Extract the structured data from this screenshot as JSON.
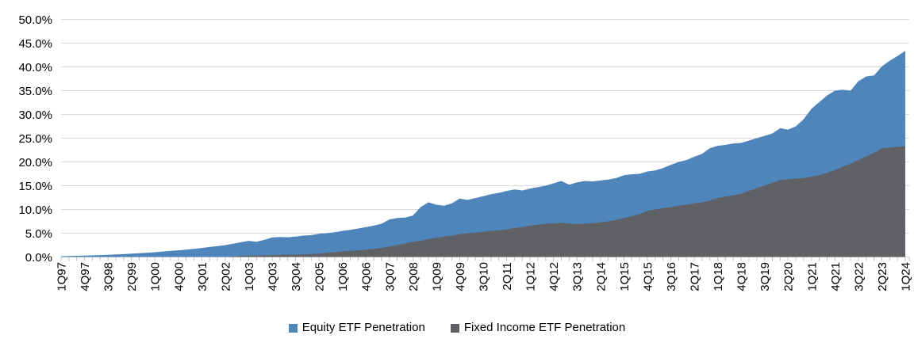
{
  "chart_data": {
    "type": "area",
    "title": "",
    "xlabel": "",
    "ylabel": "",
    "ylim": [
      0,
      50
    ],
    "ytick_step": 5,
    "grid": "horizontal",
    "legend_position": "bottom-center",
    "overlap_note": "series overlap (not stacked); Fixed Income drawn in front of Equity",
    "y_tick_labels": [
      "0.0%",
      "5.0%",
      "10.0%",
      "15.0%",
      "20.0%",
      "25.0%",
      "30.0%",
      "35.0%",
      "40.0%",
      "45.0%",
      "50.0%"
    ],
    "tick_labels": [
      "1Q97",
      "4Q97",
      "3Q98",
      "2Q99",
      "1Q00",
      "4Q00",
      "3Q01",
      "2Q02",
      "1Q03",
      "4Q03",
      "3Q04",
      "2Q05",
      "1Q06",
      "4Q06",
      "3Q07",
      "2Q08",
      "1Q09",
      "4Q09",
      "3Q10",
      "2Q11",
      "1Q12",
      "4Q12",
      "3Q13",
      "2Q14",
      "1Q15",
      "4Q15",
      "3Q16",
      "2Q17",
      "1Q18",
      "4Q18",
      "3Q19",
      "2Q20",
      "1Q21",
      "4Q21",
      "3Q22",
      "2Q23",
      "1Q24"
    ],
    "x": [
      "1Q97",
      "2Q97",
      "3Q97",
      "4Q97",
      "1Q98",
      "2Q98",
      "3Q98",
      "4Q98",
      "1Q99",
      "2Q99",
      "3Q99",
      "4Q99",
      "1Q00",
      "2Q00",
      "3Q00",
      "4Q00",
      "1Q01",
      "2Q01",
      "3Q01",
      "4Q01",
      "1Q02",
      "2Q02",
      "3Q02",
      "4Q02",
      "1Q03",
      "2Q03",
      "3Q03",
      "4Q03",
      "1Q04",
      "2Q04",
      "3Q04",
      "4Q04",
      "1Q05",
      "2Q05",
      "3Q05",
      "4Q05",
      "1Q06",
      "2Q06",
      "3Q06",
      "4Q06",
      "1Q07",
      "2Q07",
      "3Q07",
      "4Q07",
      "1Q08",
      "2Q08",
      "3Q08",
      "4Q08",
      "1Q09",
      "2Q09",
      "3Q09",
      "4Q09",
      "1Q10",
      "2Q10",
      "3Q10",
      "4Q10",
      "1Q11",
      "2Q11",
      "3Q11",
      "4Q11",
      "1Q12",
      "2Q12",
      "3Q12",
      "4Q12",
      "1Q13",
      "2Q13",
      "3Q13",
      "4Q13",
      "1Q14",
      "2Q14",
      "3Q14",
      "4Q14",
      "1Q15",
      "2Q15",
      "3Q15",
      "4Q15",
      "1Q16",
      "2Q16",
      "3Q16",
      "4Q16",
      "1Q17",
      "2Q17",
      "3Q17",
      "4Q17",
      "1Q18",
      "2Q18",
      "3Q18",
      "4Q18",
      "1Q19",
      "2Q19",
      "3Q19",
      "4Q19",
      "1Q20",
      "2Q20",
      "3Q20",
      "4Q20",
      "1Q21",
      "2Q21",
      "3Q21",
      "4Q21",
      "1Q22",
      "2Q22",
      "3Q22",
      "4Q22",
      "1Q23",
      "2Q23",
      "3Q23",
      "4Q23",
      "1Q24"
    ],
    "series": [
      {
        "name": "Equity ETF Penetration",
        "color": "#4E86BC",
        "values": [
          0.15,
          0.2,
          0.25,
          0.3,
          0.35,
          0.4,
          0.45,
          0.55,
          0.6,
          0.7,
          0.8,
          0.9,
          1.0,
          1.15,
          1.3,
          1.4,
          1.55,
          1.7,
          1.9,
          2.1,
          2.3,
          2.5,
          2.8,
          3.1,
          3.4,
          3.2,
          3.6,
          4.1,
          4.2,
          4.15,
          4.3,
          4.5,
          4.6,
          4.9,
          5.0,
          5.2,
          5.5,
          5.7,
          6.0,
          6.3,
          6.6,
          7.0,
          7.9,
          8.2,
          8.3,
          8.7,
          10.5,
          11.5,
          11.0,
          10.8,
          11.3,
          12.3,
          12.0,
          12.4,
          12.8,
          13.2,
          13.5,
          13.9,
          14.2,
          14.0,
          14.4,
          14.7,
          15.0,
          15.5,
          16.0,
          15.2,
          15.7,
          16.0,
          15.9,
          16.1,
          16.3,
          16.6,
          17.2,
          17.4,
          17.5,
          18.0,
          18.2,
          18.7,
          19.4,
          20.0,
          20.4,
          21.1,
          21.7,
          22.9,
          23.4,
          23.6,
          23.9,
          24.0,
          24.5,
          25.0,
          25.5,
          26.0,
          27.1,
          26.8,
          27.5,
          29.0,
          31.2,
          32.6,
          34.0,
          35.0,
          35.2,
          35.0,
          37.0,
          38.0,
          38.2,
          40.1,
          41.3,
          42.3,
          43.4
        ]
      },
      {
        "name": "Fixed Income ETF Penetration",
        "color": "#5F6164",
        "values": [
          0,
          0,
          0,
          0,
          0,
          0,
          0,
          0,
          0,
          0,
          0,
          0,
          0,
          0,
          0,
          0,
          0,
          0,
          0,
          0,
          0,
          0,
          0.1,
          0.2,
          0.3,
          0.3,
          0.35,
          0.4,
          0.45,
          0.5,
          0.5,
          0.55,
          0.6,
          0.7,
          0.9,
          1.0,
          1.2,
          1.3,
          1.4,
          1.55,
          1.7,
          1.9,
          2.2,
          2.5,
          2.8,
          3.2,
          3.4,
          3.8,
          4.0,
          4.3,
          4.5,
          4.8,
          5.0,
          5.1,
          5.3,
          5.5,
          5.6,
          5.8,
          6.1,
          6.3,
          6.6,
          6.8,
          7.0,
          7.05,
          7.2,
          7.0,
          6.95,
          7.0,
          7.1,
          7.3,
          7.5,
          7.8,
          8.2,
          8.6,
          9.0,
          9.7,
          10.0,
          10.3,
          10.5,
          10.8,
          11.0,
          11.3,
          11.5,
          11.9,
          12.4,
          12.7,
          13.0,
          13.3,
          13.9,
          14.5,
          15.0,
          15.6,
          16.2,
          16.3,
          16.5,
          16.6,
          16.9,
          17.2,
          17.7,
          18.3,
          19.0,
          19.6,
          20.4,
          21.2,
          21.9,
          22.9,
          23.0,
          23.2,
          23.3
        ]
      }
    ]
  },
  "style": {
    "gridline_color": "#D9D9D9",
    "tick_color": "#BFBFBF",
    "text_color": "#000000",
    "background": "#FFFFFF"
  }
}
